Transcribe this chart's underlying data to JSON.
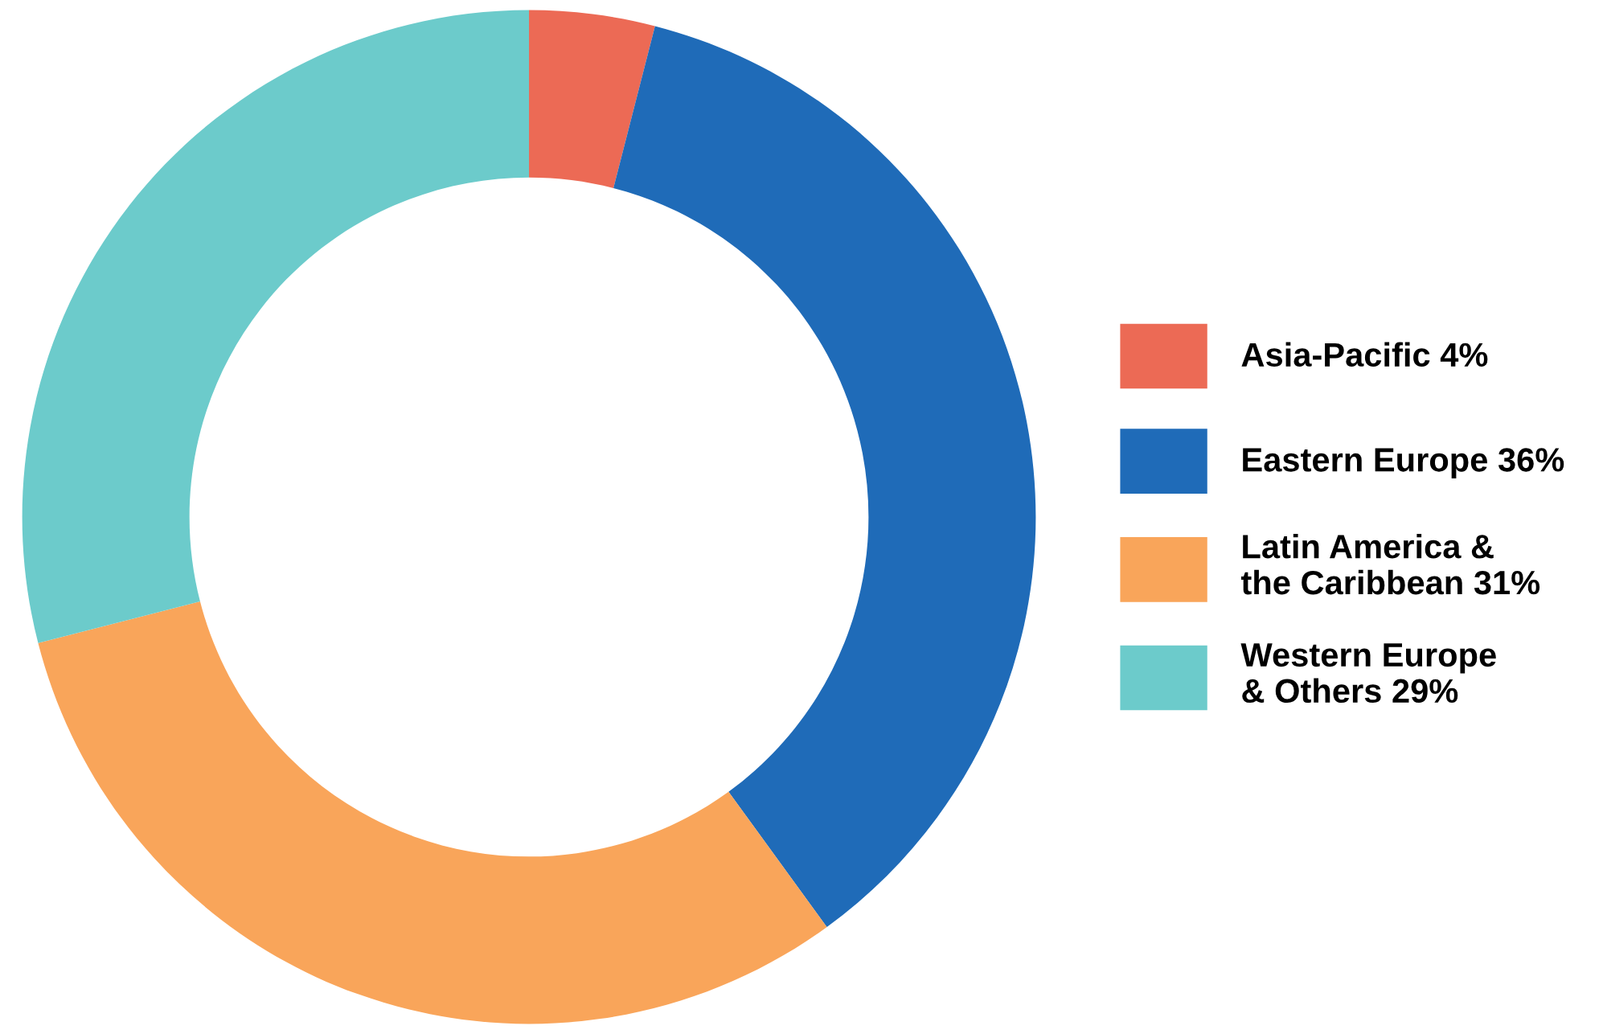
{
  "chart_data": {
    "type": "donut",
    "categories": [
      "Asia-Pacific 4%",
      "Eastern Europe 36%",
      "Latin America &\nthe Caribbean 31%",
      "Western Europe\n& Others 29%"
    ],
    "values": [
      4,
      36,
      31,
      29
    ],
    "colors": [
      "#ec6a55",
      "#1f6bb8",
      "#f9a55a",
      "#6ccbcb"
    ],
    "legend": "right"
  }
}
